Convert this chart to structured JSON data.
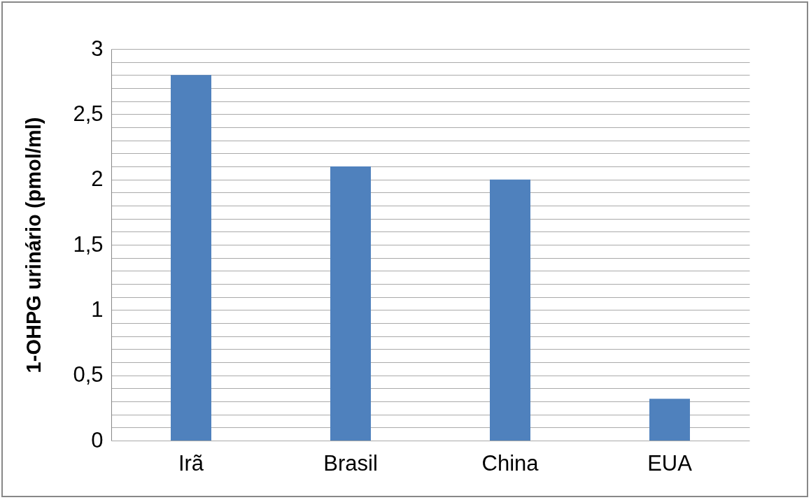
{
  "chart_data": {
    "type": "bar",
    "ylabel": "1-OHPG urinário (pmol/ml)",
    "categories": [
      "Irã",
      "Brasil",
      "China",
      "EUA"
    ],
    "values": [
      2.8,
      2.1,
      2.0,
      0.32
    ],
    "color": "#4f81bd",
    "ylim": [
      0,
      3
    ],
    "yticks": [
      0,
      {
        "value": 0.1,
        "label": null
      },
      {
        "value": 0.2,
        "label": null
      },
      {
        "value": 0.3,
        "label": null
      },
      {
        "value": 0.4,
        "label": null
      },
      {
        "value": 0.5,
        "label": "0,5"
      },
      {
        "value": 0.6,
        "label": null
      },
      {
        "value": 0.7,
        "label": null
      },
      {
        "value": 0.8,
        "label": null
      },
      {
        "value": 0.9,
        "label": null
      },
      1,
      {
        "value": 1.1,
        "label": null
      },
      {
        "value": 1.2,
        "label": null
      },
      {
        "value": 1.3,
        "label": null
      },
      {
        "value": 1.4,
        "label": null
      },
      {
        "value": 1.5,
        "label": "1,5"
      },
      {
        "value": 1.6,
        "label": null
      },
      {
        "value": 1.7,
        "label": null
      },
      {
        "value": 1.8,
        "label": null
      },
      {
        "value": 1.9,
        "label": null
      },
      2,
      {
        "value": 2.1,
        "label": null
      },
      {
        "value": 2.2,
        "label": null
      },
      {
        "value": 2.3,
        "label": null
      },
      {
        "value": 2.4,
        "label": null
      },
      {
        "value": 2.5,
        "label": "2,5"
      },
      {
        "value": 2.6,
        "label": null
      },
      {
        "value": 2.7,
        "label": null
      },
      {
        "value": 2.8,
        "label": null
      },
      {
        "value": 2.9,
        "label": null
      },
      3
    ],
    "grid": true
  }
}
